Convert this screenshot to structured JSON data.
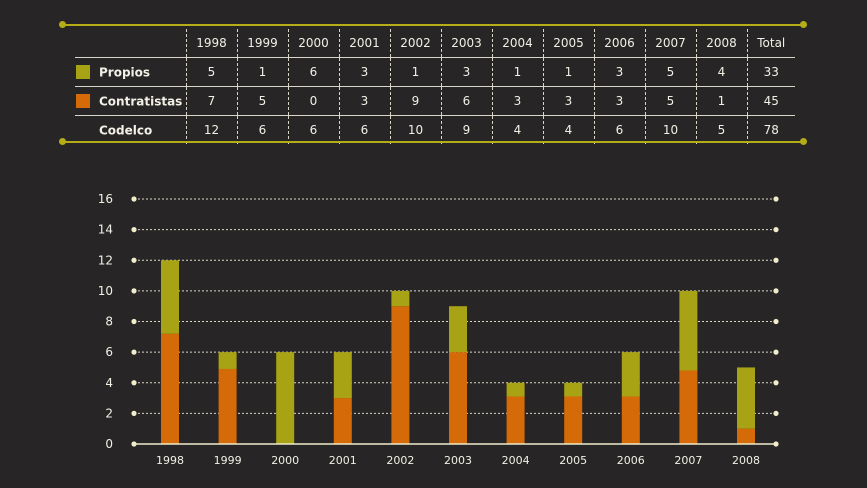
{
  "colors": {
    "propios": "#a8a315",
    "contratistas": "#d46a08",
    "rule": "#b4ad18",
    "grid": "#d9d6c8",
    "text": "#f2f0e6",
    "background": "#272525"
  },
  "table": {
    "years": [
      "1998",
      "1999",
      "2000",
      "2001",
      "2002",
      "2003",
      "2004",
      "2005",
      "2006",
      "2007",
      "2008"
    ],
    "total_label": "Total",
    "rows": [
      {
        "label": "Propios",
        "swatch": "propios",
        "values": [
          "5",
          "1",
          "6",
          "3",
          "1",
          "3",
          "1",
          "1",
          "3",
          "5",
          "4"
        ],
        "total": "33"
      },
      {
        "label": "Contratistas",
        "swatch": "contratistas",
        "values": [
          "7",
          "5",
          "0",
          "3",
          "9",
          "6",
          "3",
          "3",
          "3",
          "5",
          "1"
        ],
        "total": "45"
      },
      {
        "label": "Codelco",
        "swatch": "none",
        "values": [
          "12",
          "6",
          "6",
          "6",
          "10",
          "9",
          "4",
          "4",
          "6",
          "10",
          "5"
        ],
        "total": "78"
      }
    ]
  },
  "chart_data": {
    "type": "bar",
    "stacked": true,
    "categories": [
      "1998",
      "1999",
      "2000",
      "2001",
      "2002",
      "2003",
      "2004",
      "2005",
      "2006",
      "2007",
      "2008"
    ],
    "series": [
      {
        "name": "Contratistas",
        "color": "#d46a08",
        "values": [
          7.2,
          4.9,
          0,
          3,
          9,
          6,
          3.1,
          3.1,
          3.1,
          4.8,
          1
        ]
      },
      {
        "name": "Propios",
        "color": "#a8a315",
        "values": [
          4.8,
          1.1,
          6,
          3,
          1,
          3,
          0.9,
          0.9,
          2.9,
          5.2,
          4
        ]
      }
    ],
    "y_ticks": [
      "0",
      "2",
      "4",
      "6",
      "8",
      "10",
      "12",
      "14",
      "16"
    ],
    "ylim": [
      0,
      16
    ],
    "grid": true,
    "grid_style": "dotted",
    "title": "",
    "xlabel": "",
    "ylabel": ""
  }
}
